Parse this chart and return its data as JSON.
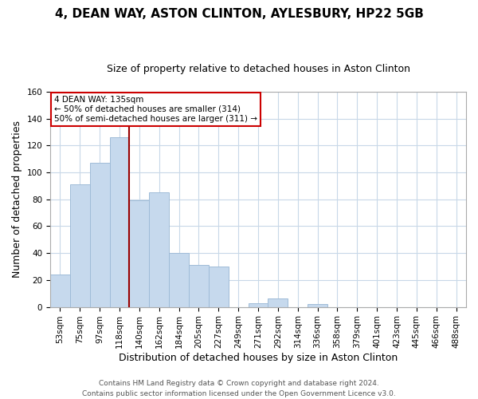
{
  "title": "4, DEAN WAY, ASTON CLINTON, AYLESBURY, HP22 5GB",
  "subtitle": "Size of property relative to detached houses in Aston Clinton",
  "xlabel": "Distribution of detached houses by size in Aston Clinton",
  "ylabel": "Number of detached properties",
  "bin_labels": [
    "53sqm",
    "75sqm",
    "97sqm",
    "118sqm",
    "140sqm",
    "162sqm",
    "184sqm",
    "205sqm",
    "227sqm",
    "249sqm",
    "271sqm",
    "292sqm",
    "314sqm",
    "336sqm",
    "358sqm",
    "379sqm",
    "401sqm",
    "423sqm",
    "445sqm",
    "466sqm",
    "488sqm"
  ],
  "bar_values": [
    24,
    91,
    107,
    126,
    79,
    85,
    40,
    31,
    30,
    0,
    3,
    6,
    0,
    2,
    0,
    0,
    0,
    0,
    0,
    0,
    0
  ],
  "bar_color": "#c6d9ed",
  "bar_edge_color": "#9fbcd8",
  "vline_x_index": 4,
  "vline_color": "#990000",
  "annotation_title": "4 DEAN WAY: 135sqm",
  "annotation_line1": "← 50% of detached houses are smaller (314)",
  "annotation_line2": "50% of semi-detached houses are larger (311) →",
  "annotation_box_color": "#ffffff",
  "annotation_box_edge": "#cc0000",
  "ylim": [
    0,
    160
  ],
  "yticks": [
    0,
    20,
    40,
    60,
    80,
    100,
    120,
    140,
    160
  ],
  "footer_line1": "Contains HM Land Registry data © Crown copyright and database right 2024.",
  "footer_line2": "Contains public sector information licensed under the Open Government Licence v3.0.",
  "background_color": "#ffffff",
  "grid_color": "#c8d8e8",
  "title_fontsize": 11,
  "subtitle_fontsize": 9,
  "xlabel_fontsize": 9,
  "ylabel_fontsize": 9,
  "tick_fontsize": 7.5,
  "footer_fontsize": 6.5
}
